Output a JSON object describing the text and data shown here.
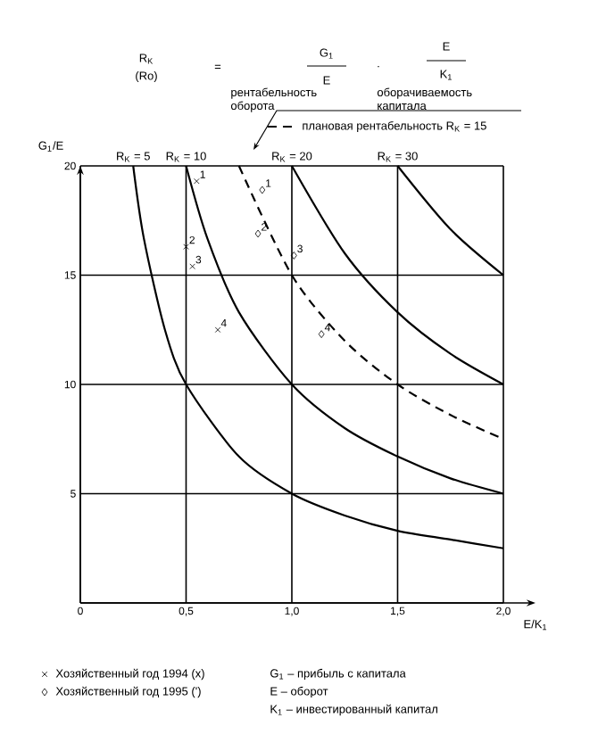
{
  "chart_data": {
    "type": "line",
    "xlabel": "E/K$_{1}$",
    "ylabel": "G$_{1}$/E",
    "xlim": [
      0,
      2
    ],
    "ylim": [
      0,
      20
    ],
    "xticks": [
      {
        "value": 0,
        "label": "0"
      },
      {
        "value": 0.5,
        "label": "0,5"
      },
      {
        "value": 1,
        "label": "1,0"
      },
      {
        "value": 1.5,
        "label": "1,5"
      },
      {
        "value": 2,
        "label": "2,0"
      }
    ],
    "yticks": [
      {
        "value": 0,
        "label": null
      },
      5,
      10,
      15,
      20
    ],
    "grid": true,
    "legend": "bottom left",
    "series": [
      {
        "name": "R$_{K}$ = 5",
        "color": "#000000",
        "line_style": "solid",
        "x": [
          0.25,
          0.3,
          0.4,
          0.5,
          0.75,
          1,
          1.25,
          1.5,
          1.75,
          2
        ],
        "values": [
          20,
          16.7,
          12.5,
          10,
          6.7,
          5,
          4,
          3.3,
          2.9,
          2.5
        ]
      },
      {
        "name": "R$_{K}$ = 10",
        "color": "#000000",
        "line_style": "solid",
        "x": [
          0.5,
          0.6,
          0.75,
          1,
          1.25,
          1.5,
          1.75,
          2
        ],
        "values": [
          20,
          16.7,
          13.3,
          10,
          8,
          6.7,
          5.7,
          5
        ]
      },
      {
        "name": "плановая рентабельность R$_{K}$ = 15",
        "color": "#000000",
        "line_style": "dashed",
        "x": [
          0.75,
          1,
          1.25,
          1.5,
          1.75,
          2
        ],
        "values": [
          20,
          15,
          12,
          10,
          8.6,
          7.5
        ]
      },
      {
        "name": "R$_{K}$ = 20",
        "color": "#000000",
        "line_style": "solid",
        "x": [
          1,
          1.25,
          1.5,
          1.75,
          2
        ],
        "values": [
          20,
          16,
          13.3,
          11.4,
          10
        ]
      },
      {
        "name": "R$_{K}$ = 30",
        "color": "#000000",
        "line_style": "solid",
        "x": [
          1.5,
          1.75,
          2
        ],
        "values": [
          20,
          17.1,
          15
        ]
      },
      {
        "name": "Хозяйственный год 1994 (x)",
        "type": "scatter",
        "marker": "cross",
        "color": "#000000",
        "x": [
          0.55,
          0.5,
          0.53,
          0.65
        ],
        "values": [
          19.3,
          16.3,
          15.4,
          12.5
        ]
      },
      {
        "name": "Хозяйственный год 1995 (')",
        "type": "scatter",
        "marker": "diamond",
        "color": "#000000",
        "x": [
          0.86,
          0.84,
          1.01,
          1.14
        ],
        "values": [
          18.9,
          16.9,
          15.9,
          12.3
        ]
      }
    ],
    "annotations": [
      "R$_{K}$",
      "(Ro)",
      "=",
      "G$_{1}$",
      "E",
      "·",
      "E",
      "K$_{1}$",
      "рентабельность оборота",
      "оборачиваемость капитала",
      "G$_{1}$ – прибыль с капитала",
      "E – оборот",
      "K$_{1}$ – инвестированный капитал",
      {
        "text": "1",
        "x": 0.55,
        "y": 19.3
      },
      {
        "text": "2",
        "x": 0.5,
        "y": 16.3
      },
      {
        "text": "3",
        "x": 0.53,
        "y": 15.4
      },
      {
        "text": "4",
        "x": 0.65,
        "y": 12.5
      },
      {
        "text": "1",
        "x": 0.86,
        "y": 18.9
      },
      {
        "text": "2",
        "x": 0.84,
        "y": 16.9
      },
      {
        "text": "3",
        "x": 1.01,
        "y": 15.9
      },
      {
        "text": "4",
        "x": 1.14,
        "y": 12.3
      }
    ]
  }
}
